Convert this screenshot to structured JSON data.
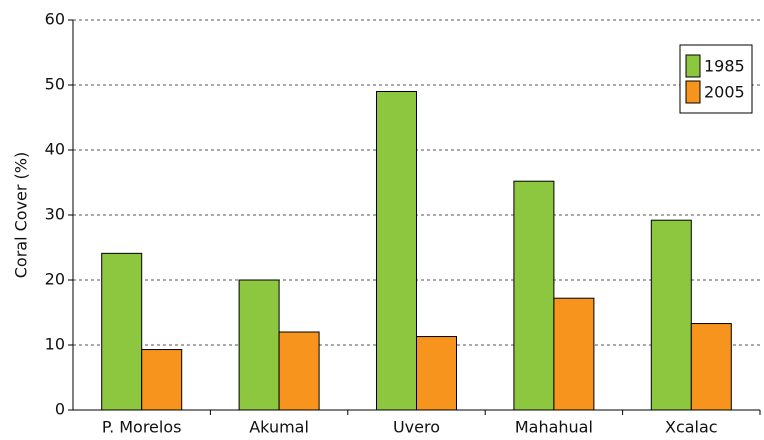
{
  "chart_data": {
    "type": "bar",
    "ylabel": "Coral Cover (%)",
    "categories": [
      "P. Morelos",
      "Akumal",
      "Uvero",
      "Mahahual",
      "Xcalac"
    ],
    "series": [
      {
        "name": "1985",
        "color": "#8dc63f",
        "values": [
          24.1,
          20,
          49,
          35.2,
          29.2
        ]
      },
      {
        "name": "2005",
        "color": "#f7941d",
        "values": [
          9.3,
          12,
          11.3,
          17.2,
          13.3
        ]
      }
    ],
    "ylim": [
      0,
      60
    ],
    "yticks": [
      0,
      10,
      20,
      30,
      40,
      50,
      60
    ],
    "grid": true,
    "legend": "upper right"
  }
}
